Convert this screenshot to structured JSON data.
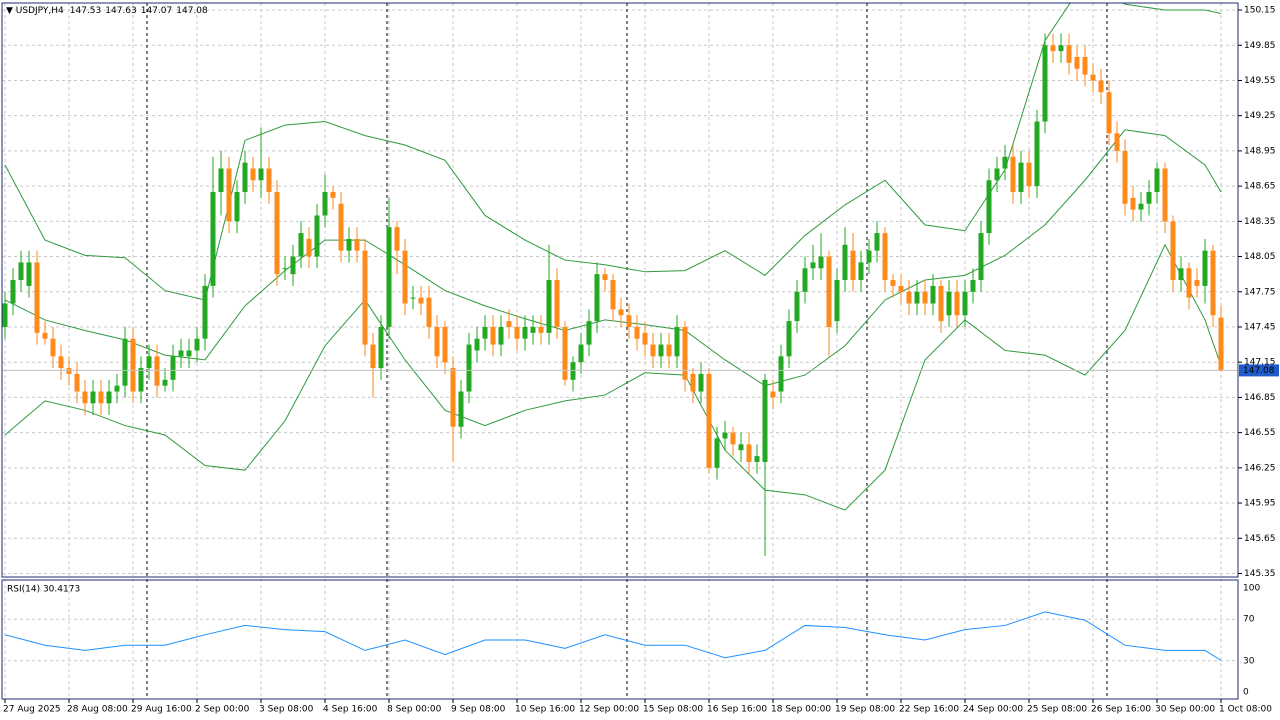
{
  "chart_data": [
    {
      "type": "candlestick",
      "title": "USDJPY,H4",
      "open": [
        147.45,
        147.65,
        147.85,
        147.8,
        148.0,
        147.4,
        147.35,
        147.2,
        147.1,
        147.05,
        146.9,
        146.8,
        146.9,
        146.8,
        146.9,
        146.95,
        147.35,
        146.9,
        147.1,
        147.2,
        146.95,
        147.0,
        147.2,
        147.2,
        147.25,
        147.35,
        147.8,
        148.6,
        148.8,
        148.35,
        148.6,
        148.8,
        148.7,
        148.8,
        148.6,
        147.95,
        147.9,
        148.05,
        148.2,
        148.05,
        148.4,
        148.6,
        148.5,
        148.1,
        148.2,
        148.1,
        147.3,
        147.1,
        147.45,
        148.3,
        148.1,
        147.7,
        147.7,
        147.7,
        147.45,
        147.45,
        147.1,
        146.6,
        146.9,
        147.25,
        147.35,
        147.45,
        147.3,
        147.5,
        147.45,
        147.35,
        147.4,
        147.45,
        147.4,
        147.85,
        147.45,
        147.0,
        147.15,
        147.3,
        147.5,
        147.9,
        147.85,
        147.6,
        147.55,
        147.45,
        147.4,
        147.3,
        147.2,
        147.3,
        147.2,
        147.45,
        147.05,
        146.9,
        147.05,
        146.25,
        146.5,
        146.55,
        146.4,
        146.45,
        146.3,
        146.3,
        146.9,
        146.9,
        147.2,
        147.5,
        147.75,
        147.95,
        147.95,
        148.05,
        147.5,
        147.85,
        148.1,
        147.85,
        148.0,
        148.1,
        148.25,
        147.85,
        147.8,
        147.75,
        147.65,
        147.75,
        147.65,
        147.8,
        147.55,
        147.75,
        147.55,
        147.75,
        147.85,
        148.25,
        148.7,
        148.8,
        148.9,
        148.6,
        148.85,
        148.65,
        149.2,
        149.85,
        149.8,
        149.85,
        149.75,
        149.75,
        149.6,
        149.55,
        149.45,
        149.1,
        148.95,
        148.55,
        148.45,
        148.5,
        148.6,
        148.8,
        148.35,
        147.85,
        147.95,
        147.85,
        147.8,
        148.1,
        147.53
      ],
      "high": [
        147.75,
        147.95,
        148.1,
        148.1,
        148.1,
        147.5,
        147.45,
        147.3,
        147.2,
        147.15,
        147.0,
        147.0,
        147.0,
        147.0,
        147.05,
        147.45,
        147.45,
        147.2,
        147.3,
        147.3,
        147.1,
        147.3,
        147.35,
        147.35,
        147.45,
        147.9,
        148.9,
        148.95,
        148.9,
        148.7,
        148.95,
        148.9,
        149.15,
        148.9,
        148.7,
        148.05,
        148.15,
        148.35,
        148.3,
        148.5,
        148.75,
        148.65,
        148.6,
        148.3,
        148.3,
        148.2,
        147.4,
        147.55,
        148.55,
        148.35,
        148.2,
        147.8,
        147.8,
        147.8,
        147.55,
        147.5,
        147.2,
        147.0,
        147.4,
        147.45,
        147.55,
        147.55,
        147.55,
        147.6,
        147.55,
        147.55,
        147.55,
        147.55,
        148.15,
        147.95,
        147.5,
        147.2,
        147.4,
        147.6,
        148.0,
        147.95,
        147.9,
        147.7,
        147.65,
        147.55,
        147.5,
        147.4,
        147.4,
        147.4,
        147.55,
        147.5,
        147.1,
        147.15,
        147.1,
        146.6,
        146.65,
        146.6,
        146.55,
        146.55,
        146.45,
        147.05,
        147.0,
        147.3,
        147.6,
        147.85,
        148.05,
        148.15,
        148.25,
        148.1,
        147.95,
        148.3,
        148.25,
        148.1,
        148.2,
        148.35,
        148.3,
        147.9,
        147.9,
        147.85,
        147.85,
        147.85,
        147.9,
        147.85,
        147.85,
        147.85,
        147.85,
        147.95,
        148.35,
        148.8,
        148.9,
        149.0,
        149.0,
        148.95,
        148.95,
        149.3,
        149.95,
        149.95,
        149.95,
        149.95,
        149.85,
        149.85,
        149.7,
        149.65,
        149.55,
        149.2,
        149.05,
        148.65,
        148.6,
        148.7,
        148.85,
        148.85,
        148.4,
        148.05,
        148.0,
        147.95,
        148.2,
        148.15,
        147.63
      ],
      "low": [
        147.35,
        147.55,
        147.75,
        147.7,
        147.3,
        147.3,
        147.1,
        147.0,
        146.95,
        146.8,
        146.7,
        146.7,
        146.7,
        146.7,
        146.8,
        146.85,
        146.8,
        146.8,
        147.0,
        146.85,
        146.9,
        146.9,
        147.1,
        147.1,
        147.15,
        147.25,
        147.7,
        148.4,
        148.25,
        148.25,
        148.5,
        148.6,
        148.55,
        148.5,
        147.8,
        147.85,
        147.8,
        147.95,
        147.95,
        147.95,
        148.3,
        148.45,
        148.0,
        148.0,
        148.0,
        147.2,
        146.85,
        147.0,
        147.35,
        147.9,
        147.55,
        147.6,
        147.55,
        147.35,
        147.1,
        147.05,
        146.3,
        146.5,
        146.8,
        147.15,
        147.25,
        147.2,
        147.2,
        147.35,
        147.25,
        147.25,
        147.3,
        147.3,
        147.3,
        147.35,
        146.95,
        146.9,
        147.05,
        147.2,
        147.4,
        147.75,
        147.5,
        147.45,
        147.35,
        147.25,
        147.2,
        147.1,
        147.1,
        147.1,
        147.1,
        146.9,
        146.8,
        146.8,
        146.2,
        146.15,
        146.4,
        146.35,
        146.3,
        146.2,
        146.2,
        145.5,
        146.75,
        146.8,
        147.1,
        147.4,
        147.65,
        147.85,
        147.85,
        147.2,
        147.4,
        147.75,
        147.75,
        147.75,
        147.9,
        148.0,
        147.75,
        147.7,
        147.65,
        147.55,
        147.55,
        147.55,
        147.55,
        147.4,
        147.45,
        147.45,
        147.45,
        147.65,
        147.75,
        148.15,
        148.6,
        148.7,
        148.5,
        148.5,
        148.55,
        148.55,
        149.1,
        149.7,
        149.7,
        149.6,
        149.55,
        149.5,
        149.45,
        149.35,
        149.0,
        148.85,
        148.4,
        148.35,
        148.35,
        148.4,
        148.5,
        148.25,
        147.75,
        147.75,
        147.6,
        147.7,
        147.65,
        147.45,
        147.07
      ],
      "close": [
        147.65,
        147.85,
        148.0,
        148.0,
        147.4,
        147.35,
        147.2,
        147.1,
        147.05,
        146.9,
        146.8,
        146.9,
        146.8,
        146.9,
        146.95,
        147.35,
        146.9,
        147.1,
        147.2,
        146.95,
        147.0,
        147.2,
        147.25,
        147.25,
        147.35,
        147.8,
        148.6,
        148.8,
        148.35,
        148.6,
        148.85,
        148.7,
        148.8,
        148.6,
        147.9,
        147.95,
        148.05,
        148.25,
        148.05,
        148.4,
        148.6,
        148.55,
        148.1,
        148.2,
        148.1,
        147.3,
        147.1,
        147.45,
        148.3,
        148.1,
        147.65,
        147.7,
        147.65,
        147.45,
        147.2,
        147.15,
        146.6,
        146.9,
        147.3,
        147.35,
        147.45,
        147.3,
        147.45,
        147.45,
        147.35,
        147.45,
        147.45,
        147.4,
        147.85,
        147.45,
        147.0,
        147.15,
        147.3,
        147.5,
        147.9,
        147.85,
        147.6,
        147.55,
        147.45,
        147.35,
        147.3,
        147.2,
        147.3,
        147.2,
        147.45,
        147.0,
        146.9,
        147.05,
        146.25,
        146.5,
        146.55,
        146.45,
        146.45,
        146.3,
        146.35,
        147.0,
        146.85,
        147.2,
        147.5,
        147.75,
        147.95,
        148.0,
        148.05,
        147.45,
        147.85,
        148.15,
        147.85,
        148.0,
        148.1,
        148.25,
        147.85,
        147.8,
        147.75,
        147.65,
        147.75,
        147.65,
        147.8,
        147.5,
        147.75,
        147.55,
        147.75,
        147.85,
        148.25,
        148.7,
        148.8,
        148.9,
        148.6,
        148.85,
        148.65,
        149.2,
        149.85,
        149.8,
        149.85,
        149.7,
        149.65,
        149.6,
        149.55,
        149.45,
        149.1,
        148.95,
        148.5,
        148.45,
        148.5,
        148.6,
        148.8,
        148.35,
        147.85,
        147.95,
        147.7,
        147.8,
        148.1,
        147.55,
        147.08
      ],
      "up_color": "#22a822",
      "down_color": "#ff8a1c",
      "overlay_x": [
        0,
        5,
        10,
        15,
        20,
        25,
        30,
        35,
        40,
        45,
        50,
        55,
        60,
        65,
        70,
        75,
        80,
        85,
        90,
        95,
        100,
        105,
        110,
        115,
        120,
        125,
        130,
        135,
        140,
        145,
        150,
        152
      ],
      "overlays": [
        {
          "color": "#2e9a3e",
          "values": [
            148.83,
            148.19,
            148.06,
            148.04,
            147.76,
            147.68,
            149.04,
            149.17,
            149.2,
            149.08,
            149.0,
            148.87,
            148.4,
            148.19,
            148.02,
            147.98,
            147.92,
            147.93,
            148.1,
            147.89,
            148.23,
            148.49,
            148.7,
            148.32,
            148.27,
            148.79,
            149.89,
            150.4,
            150.2,
            150.15,
            150.15,
            150.12
          ]
        },
        {
          "color": "#2e9a3e",
          "values": [
            147.68,
            147.51,
            147.42,
            147.34,
            147.21,
            147.17,
            147.63,
            147.93,
            148.19,
            148.19,
            147.98,
            147.76,
            147.63,
            147.52,
            147.42,
            147.51,
            147.47,
            147.42,
            147.17,
            146.95,
            147.04,
            147.29,
            147.68,
            147.85,
            147.89,
            148.06,
            148.32,
            148.7,
            149.13,
            149.08,
            148.83,
            148.6
          ]
        },
        {
          "color": "#2e9a3e",
          "values": [
            146.53,
            146.82,
            146.74,
            146.61,
            146.53,
            146.27,
            146.23,
            146.65,
            147.29,
            147.68,
            147.17,
            146.74,
            146.61,
            146.74,
            146.82,
            146.87,
            147.06,
            147.04,
            146.4,
            146.06,
            146.02,
            145.89,
            146.23,
            147.17,
            147.51,
            147.25,
            147.21,
            147.04,
            147.42,
            148.15,
            147.51,
            147.12
          ]
        }
      ],
      "xticks": [
        {
          "value": 0,
          "label": "27 Aug 2025"
        },
        {
          "value": 8,
          "label": "28 Aug 08:00"
        },
        {
          "value": 16,
          "label": "29 Aug 16:00"
        },
        {
          "value": 24,
          "label": "2 Sep 00:00"
        },
        {
          "value": 32,
          "label": "3 Sep 08:00"
        },
        {
          "value": 40,
          "label": "4 Sep 16:00"
        },
        {
          "value": 48,
          "label": "8 Sep 00:00"
        },
        {
          "value": 56,
          "label": "9 Sep 08:00"
        },
        {
          "value": 64,
          "label": "10 Sep 16:00"
        },
        {
          "value": 72,
          "label": "12 Sep 00:00"
        },
        {
          "value": 80,
          "label": "15 Sep 08:00"
        },
        {
          "value": 88,
          "label": "16 Sep 16:00"
        },
        {
          "value": 96,
          "label": "18 Sep 00:00"
        },
        {
          "value": 104,
          "label": "19 Sep 08:00"
        },
        {
          "value": 112,
          "label": "22 Sep 16:00"
        },
        {
          "value": 120,
          "label": "24 Sep 00:00"
        },
        {
          "value": 128,
          "label": "25 Sep 08:00"
        },
        {
          "value": 136,
          "label": "26 Sep 16:00"
        },
        {
          "value": 144,
          "label": "30 Sep 00:00"
        },
        {
          "value": 152,
          "label": "1 Oct 08:00"
        }
      ],
      "ylim": [
        145.32,
        150.21
      ],
      "yticks": [
        150.15,
        149.85,
        149.55,
        149.25,
        148.95,
        148.65,
        148.35,
        148.05,
        147.75,
        147.45,
        147.15,
        146.85,
        146.55,
        146.25,
        145.95,
        145.65,
        145.35
      ],
      "grid": true
    },
    {
      "type": "line",
      "title": "RSI(14) 30.4173",
      "x": [
        0,
        5,
        10,
        15,
        20,
        25,
        30,
        35,
        40,
        45,
        50,
        55,
        60,
        65,
        70,
        75,
        80,
        85,
        90,
        95,
        100,
        105,
        110,
        115,
        120,
        125,
        130,
        135,
        140,
        145,
        150,
        152
      ],
      "values": [
        55,
        45,
        40,
        45,
        45,
        55,
        64,
        60,
        58,
        40,
        50,
        36,
        50,
        50,
        42,
        55,
        45,
        45,
        33,
        40,
        64,
        62,
        55,
        50,
        60,
        64,
        77,
        69,
        45,
        40,
        40,
        30.4
      ],
      "color": "#1e90ff",
      "ylim": [
        0,
        100
      ],
      "yticks": [
        100,
        70,
        30,
        0
      ]
    }
  ]
}
